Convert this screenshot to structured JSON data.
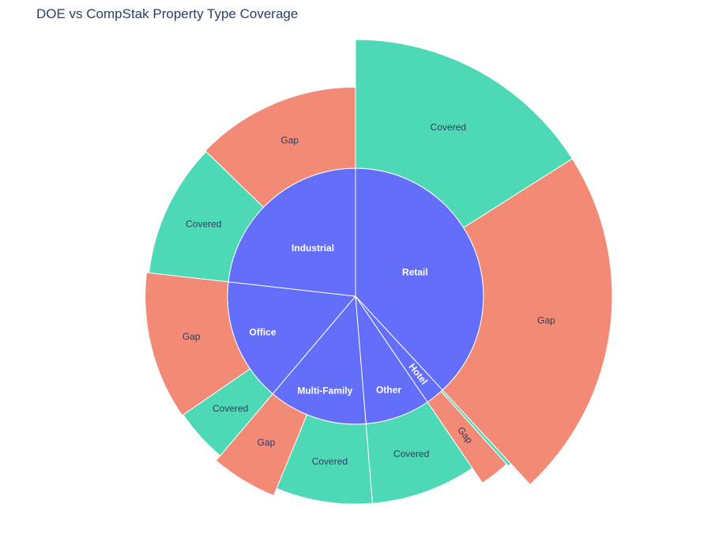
{
  "chart_data": {
    "type": "sunburst",
    "title": "DOE vs CompStak Property Type Coverage",
    "colors": {
      "inner": "#636efa",
      "Gap": "#f38a76",
      "Covered": "#4ed9b6"
    },
    "categories": [
      {
        "name": "Retail",
        "share": 0.381,
        "children": [
          {
            "name": "Covered",
            "value": 0.42,
            "length": 1.0
          },
          {
            "name": "Gap",
            "value": 0.58,
            "length": 1.0
          }
        ]
      },
      {
        "name": "Hotel",
        "share": 0.024,
        "children": [
          {
            "name": "Covered",
            "value": 0.1,
            "length": 0.78
          },
          {
            "name": "Gap",
            "value": 0.9,
            "length": 0.76
          }
        ]
      },
      {
        "name": "Other",
        "share": 0.082,
        "children": [
          {
            "name": "Covered",
            "value": 1.0,
            "length": 0.62
          }
        ]
      },
      {
        "name": "Multi-Family",
        "share": 0.125,
        "children": [
          {
            "name": "Covered",
            "value": 0.6,
            "length": 0.62
          },
          {
            "name": "Gap",
            "value": 0.4,
            "length": 0.68
          }
        ]
      },
      {
        "name": "Office",
        "share": 0.156,
        "children": [
          {
            "name": "Covered",
            "value": 0.27,
            "length": 0.63
          },
          {
            "name": "Gap",
            "value": 0.73,
            "length": 0.64
          }
        ]
      },
      {
        "name": "Industrial",
        "share": 0.232,
        "children": [
          {
            "name": "Covered",
            "value": 0.45,
            "length": 0.62
          },
          {
            "name": "Gap",
            "value": 0.55,
            "length": 0.63
          }
        ]
      }
    ]
  }
}
